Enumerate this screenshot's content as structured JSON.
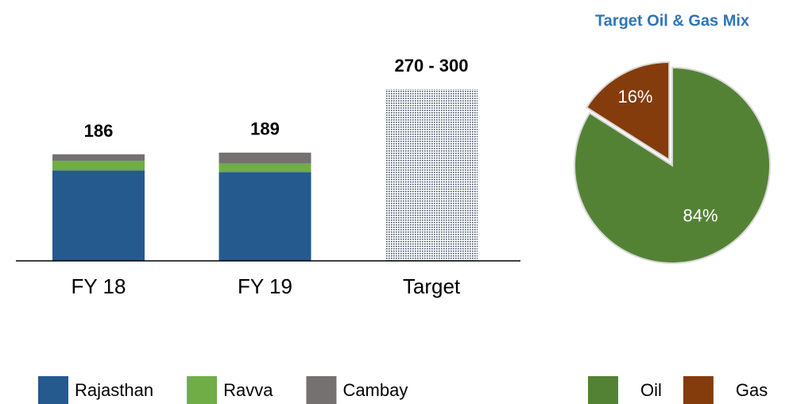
{
  "chart_data": [
    {
      "type": "bar",
      "categories": [
        "FY 18",
        "FY 19",
        "Target"
      ],
      "series": [
        {
          "name": "Rajasthan",
          "color": "#245a8e",
          "values": [
            158,
            155,
            null
          ]
        },
        {
          "name": "Ravva",
          "color": "#70ad47",
          "values": [
            17,
            15,
            null
          ]
        },
        {
          "name": "Cambay",
          "color": "#767171",
          "values": [
            11,
            19,
            null
          ]
        }
      ],
      "totals": [
        186,
        189,
        null
      ],
      "target_range": [
        270,
        300
      ],
      "target_label": "270 - 300",
      "legend": "bottom"
    },
    {
      "type": "pie",
      "title": "Target Oil & Gas Mix",
      "categories": [
        "Oil",
        "Gas"
      ],
      "values": [
        84,
        16
      ],
      "value_labels": [
        "84%",
        "16%"
      ],
      "colors": [
        "#548235",
        "#843c0c"
      ],
      "legend": "bottom"
    }
  ]
}
